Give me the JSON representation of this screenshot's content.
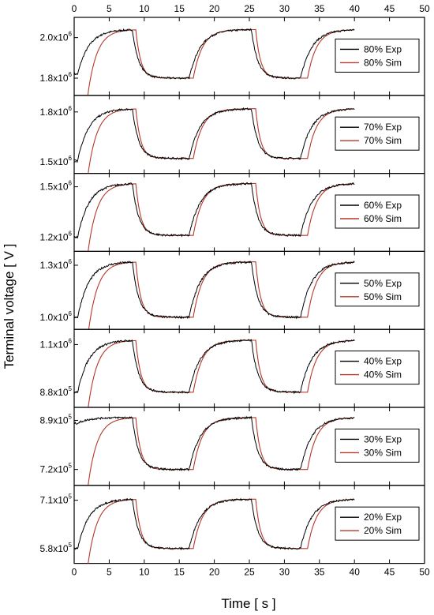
{
  "chart_data": {
    "type": "line",
    "xlabel": "Time [ s ]",
    "ylabel": "Terminal voltage [ V ]",
    "xlim": [
      0,
      50
    ],
    "xticks": [
      "0",
      "5",
      "10",
      "15",
      "20",
      "25",
      "30",
      "35",
      "40",
      "45",
      "50"
    ],
    "grid": false,
    "legend_position": "right",
    "colors": {
      "exp": "#000000",
      "sim": "#b5382a"
    },
    "panels": [
      {
        "ytick_labels": [
          {
            "base": "2.0x10",
            "exp": "6",
            "value": 2.0
          },
          {
            "base": "1.8x10",
            "exp": "6",
            "value": 1.8
          }
        ],
        "ylim": [
          1.715,
          2.1
        ],
        "low": 1.8,
        "high": 2.04,
        "start": 1.82,
        "series": [
          {
            "name": "80% Exp"
          },
          {
            "name": "80% Sim"
          }
        ]
      },
      {
        "ytick_labels": [
          {
            "base": "1.8x10",
            "exp": "6",
            "value": 1.8
          },
          {
            "base": "1.5x10",
            "exp": "6",
            "value": 1.5
          }
        ],
        "ylim": [
          1.43,
          1.9
        ],
        "low": 1.52,
        "high": 1.82,
        "start": 1.51,
        "series": [
          {
            "name": "70% Exp"
          },
          {
            "name": "70% Sim"
          }
        ]
      },
      {
        "ytick_labels": [
          {
            "base": "1.5x10",
            "exp": "6",
            "value": 1.5
          },
          {
            "base": "1.2x10",
            "exp": "6",
            "value": 1.2
          }
        ],
        "ylim": [
          1.115,
          1.58
        ],
        "low": 1.21,
        "high": 1.52,
        "start": 1.2,
        "series": [
          {
            "name": "60% Exp"
          },
          {
            "name": "60% Sim"
          }
        ]
      },
      {
        "ytick_labels": [
          {
            "base": "1.3x10",
            "exp": "6",
            "value": 1.3
          },
          {
            "base": "1.0x10",
            "exp": "6",
            "value": 1.0
          }
        ],
        "ylim": [
          0.93,
          1.38
        ],
        "low": 1.0,
        "high": 1.32,
        "start": 1.0,
        "series": [
          {
            "name": "50% Exp"
          },
          {
            "name": "50% Sim"
          }
        ]
      },
      {
        "ytick_labels": [
          {
            "base": "1.1x10",
            "exp": "6",
            "value": 1.1
          },
          {
            "base": "8.8x10",
            "exp": "5",
            "value": 0.88
          }
        ],
        "ylim": [
          0.81,
          1.17
        ],
        "low": 0.88,
        "high": 1.12,
        "start": 0.88,
        "series": [
          {
            "name": "40% Exp"
          },
          {
            "name": "40% Sim"
          }
        ]
      },
      {
        "ytick_labels": [
          {
            "base": "8.9x10",
            "exp": "5",
            "value": 0.89
          },
          {
            "base": "7.2x10",
            "exp": "5",
            "value": 0.72
          }
        ],
        "ylim": [
          0.665,
          0.935
        ],
        "low": 0.72,
        "high": 0.9,
        "start": 0.88,
        "series": [
          {
            "name": "30% Exp"
          },
          {
            "name": "30% Sim"
          }
        ]
      },
      {
        "ytick_labels": [
          {
            "base": "7.1x10",
            "exp": "5",
            "value": 0.71
          },
          {
            "base": "5.8x10",
            "exp": "5",
            "value": 0.58
          }
        ],
        "ylim": [
          0.54,
          0.75
        ],
        "low": 0.58,
        "high": 0.713,
        "start": 0.58,
        "series": [
          {
            "name": "20% Exp"
          },
          {
            "name": "20% Sim"
          }
        ]
      }
    ]
  }
}
